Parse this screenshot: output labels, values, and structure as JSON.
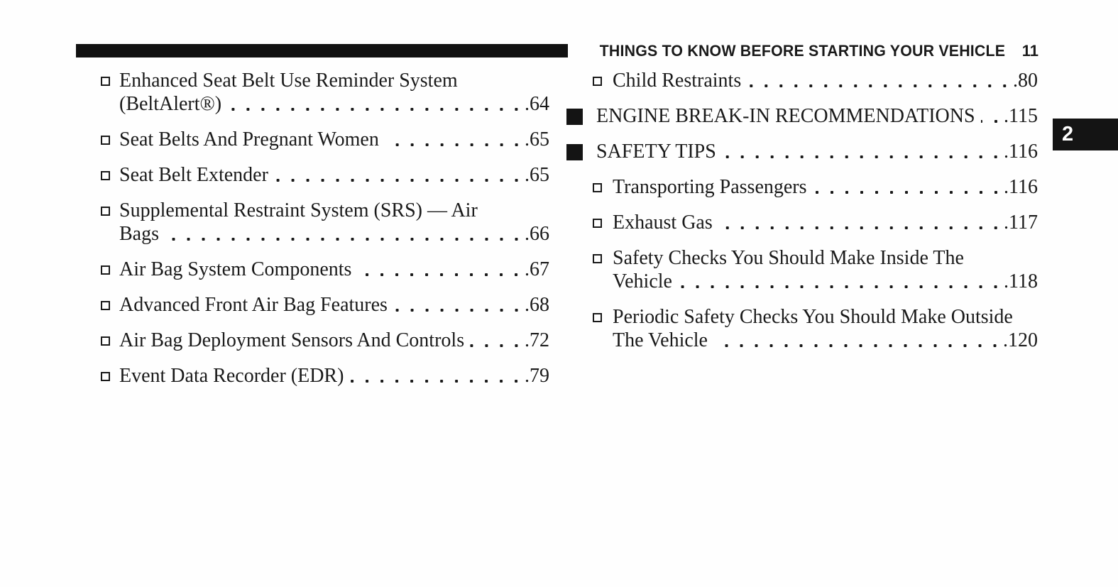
{
  "header": {
    "title": "THINGS TO KNOW BEFORE STARTING YOUR VEHICLE",
    "page_number": "11"
  },
  "section_tab": "2",
  "icons": {
    "sub_bullet": "open-square",
    "top_bullet": "filled-square"
  },
  "colors": {
    "ink": "#1a1a1a",
    "bar": "#111111",
    "tab_background": "#141414",
    "tab_text": "#ffffff",
    "page_background": "#fefefe"
  },
  "toc": {
    "left_column": [
      {
        "level": "sub",
        "lines": [
          "Enhanced Seat Belt Use Reminder System",
          "(BeltAlert®)"
        ],
        "page": "64"
      },
      {
        "level": "sub",
        "lines": [
          "Seat Belts And Pregnant Women"
        ],
        "page": "65"
      },
      {
        "level": "sub",
        "lines": [
          "Seat Belt Extender"
        ],
        "page": "65"
      },
      {
        "level": "sub",
        "lines": [
          "Supplemental Restraint System (SRS) — Air",
          "Bags"
        ],
        "page": "66"
      },
      {
        "level": "sub",
        "lines": [
          "Air Bag System Components"
        ],
        "page": "67"
      },
      {
        "level": "sub",
        "lines": [
          "Advanced Front Air Bag Features"
        ],
        "page": "68"
      },
      {
        "level": "sub",
        "lines": [
          "Air Bag Deployment Sensors And Controls"
        ],
        "page": "72"
      },
      {
        "level": "sub",
        "lines": [
          "Event Data Recorder (EDR)"
        ],
        "page": "79"
      }
    ],
    "right_column": [
      {
        "level": "sub",
        "lines": [
          "Child Restraints"
        ],
        "page": "80"
      },
      {
        "level": "top",
        "lines": [
          "ENGINE BREAK-IN RECOMMENDATIONS"
        ],
        "page": "115"
      },
      {
        "level": "top",
        "lines": [
          "SAFETY TIPS"
        ],
        "page": "116"
      },
      {
        "level": "sub",
        "lines": [
          "Transporting Passengers"
        ],
        "page": "116"
      },
      {
        "level": "sub",
        "lines": [
          "Exhaust Gas"
        ],
        "page": "117"
      },
      {
        "level": "sub",
        "lines": [
          "Safety Checks You Should Make Inside The",
          "Vehicle"
        ],
        "page": "118"
      },
      {
        "level": "sub",
        "lines": [
          "Periodic Safety Checks You Should Make Outside",
          "The Vehicle"
        ],
        "page": "120"
      }
    ]
  }
}
